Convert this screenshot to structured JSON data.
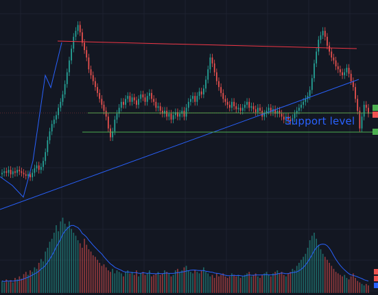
{
  "chart_data": {
    "type": "candlestick",
    "theme": {
      "background": "#131722",
      "grid": "#1e2230",
      "bull": "#26a69a",
      "bear": "#ef5350",
      "ma": "#2962ff",
      "support": "#4caf50",
      "resistance": "#f23645",
      "trendline": "#2962ff"
    },
    "grid": true,
    "price_range": [
      0,
      100
    ],
    "close": [
      22,
      23,
      22,
      24,
      21,
      23,
      22,
      24,
      23,
      22,
      21,
      20,
      21,
      19,
      22,
      25,
      27,
      24,
      26,
      30,
      36,
      44,
      50,
      55,
      58,
      61,
      66,
      70,
      75,
      82,
      90,
      98,
      106,
      114,
      118,
      122,
      117,
      110,
      105,
      100,
      92,
      88,
      84,
      80,
      76,
      72,
      68,
      64,
      60,
      52,
      46,
      50,
      58,
      62,
      66,
      70,
      68,
      72,
      74,
      70,
      73,
      71,
      68,
      72,
      75,
      73,
      70,
      74,
      76,
      72,
      70,
      66,
      67,
      64,
      62,
      64,
      60,
      62,
      58,
      61,
      63,
      60,
      62,
      64,
      60,
      66,
      70,
      72,
      74,
      70,
      74,
      77,
      75,
      79,
      85,
      92,
      100,
      96,
      90,
      84,
      80,
      76,
      72,
      70,
      68,
      66,
      70,
      67,
      65,
      66,
      64,
      66,
      68,
      70,
      66,
      67,
      65,
      63,
      66,
      64,
      60,
      62,
      64,
      66,
      63,
      65,
      62,
      64,
      62,
      60,
      58,
      60,
      58,
      57,
      59,
      62,
      64,
      66,
      68,
      70,
      72,
      74,
      78,
      86,
      96,
      104,
      112,
      115,
      118,
      114,
      108,
      104,
      100,
      98,
      94,
      92,
      90,
      88,
      90,
      93,
      89,
      84,
      80,
      72,
      64,
      52,
      60,
      68,
      66,
      62
    ],
    "volume": [
      16,
      14,
      18,
      15,
      17,
      14,
      20,
      18,
      22,
      19,
      25,
      28,
      24,
      30,
      28,
      34,
      32,
      40,
      45,
      42,
      55,
      60,
      68,
      72,
      80,
      90,
      82,
      95,
      100,
      92,
      88,
      95,
      85,
      80,
      76,
      70,
      66,
      60,
      72,
      64,
      58,
      55,
      50,
      48,
      44,
      40,
      36,
      38,
      34,
      30,
      28,
      32,
      26,
      30,
      28,
      26,
      22,
      28,
      30,
      26,
      28,
      24,
      30,
      22,
      26,
      28,
      24,
      26,
      30,
      22,
      24,
      26,
      28,
      24,
      26,
      30,
      28,
      26,
      22,
      24,
      30,
      32,
      28,
      30,
      34,
      36,
      30,
      28,
      26,
      30,
      28,
      26,
      30,
      34,
      28,
      26,
      22,
      24,
      20,
      26,
      22,
      24,
      26,
      22,
      20,
      22,
      26,
      24,
      22,
      24,
      20,
      22,
      24,
      26,
      28,
      22,
      24,
      26,
      22,
      20,
      24,
      26,
      28,
      24,
      22,
      26,
      28,
      30,
      26,
      28,
      24,
      22,
      26,
      28,
      32,
      30,
      36,
      40,
      44,
      48,
      52,
      60,
      70,
      76,
      80,
      72,
      64,
      58,
      52,
      48,
      44,
      40,
      36,
      32,
      28,
      26,
      24,
      22,
      24,
      20,
      18,
      22,
      26,
      20,
      16,
      14,
      12,
      10,
      12,
      10
    ]
  }
}
